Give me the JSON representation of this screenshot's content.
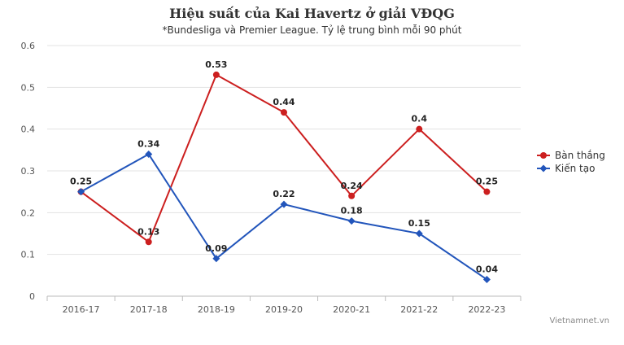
{
  "chart_data": {
    "type": "line",
    "title": "Hiệu suất của Kai Havertz ở giải VĐQG",
    "subtitle": "*Bundesliga và Premier League. Tỷ lệ trung bình mỗi 90 phút",
    "categories": [
      "2016-17",
      "2017-18",
      "2018-19",
      "2019-20",
      "2020-21",
      "2021-22",
      "2022-23"
    ],
    "y_ticks": [
      "0",
      "0.1",
      "0.2",
      "0.3",
      "0.4",
      "0.5",
      "0.6"
    ],
    "ylim": [
      0,
      0.6
    ],
    "grid": true,
    "legend_position": "right",
    "series": [
      {
        "name": "Bàn thắng",
        "color": "#cc1f1f",
        "marker": "circle",
        "values": [
          0.25,
          0.13,
          0.53,
          0.44,
          0.24,
          0.4,
          0.25
        ],
        "labels": [
          "0.25",
          "0.13",
          "0.53",
          "0.44",
          "0.24",
          "0.4",
          "0.25"
        ]
      },
      {
        "name": "Kiến tạo",
        "color": "#2255bb",
        "marker": "diamond",
        "values": [
          0.25,
          0.34,
          0.09,
          0.22,
          0.18,
          0.15,
          0.04
        ],
        "labels": [
          "",
          "0.34",
          "0.09",
          "0.22",
          "0.18",
          "0.15",
          "0.04"
        ]
      }
    ],
    "credit": "Vietnamnet.vn"
  }
}
